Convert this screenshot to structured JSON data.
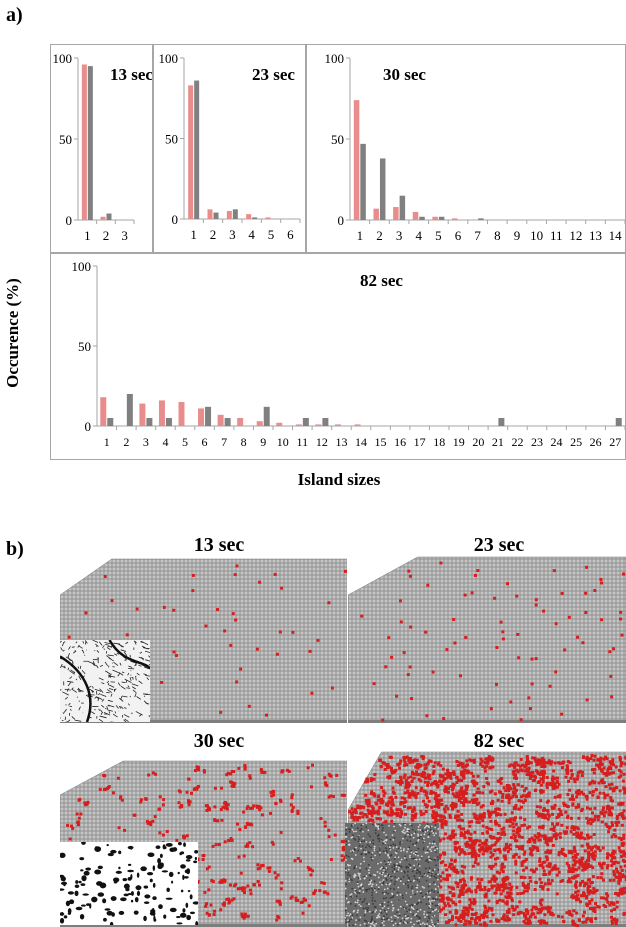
{
  "figure": {
    "panel_a_label": "a)",
    "panel_b_label": "b)",
    "ylabel": "Occurence (%)",
    "xlabel": "Island sizes"
  },
  "colors": {
    "series1": "#e98c8c",
    "series2": "#808080",
    "frame": "#a6a6a6",
    "substrate": "#a9a9a9",
    "island": "#d61e1e"
  },
  "chart_data": [
    {
      "type": "bar",
      "title": "13 sec",
      "categories": [
        "1",
        "2",
        "3"
      ],
      "ylim": [
        0,
        100
      ],
      "yticks": [
        "0",
        "50",
        "100"
      ],
      "series": [
        {
          "values": [
            96,
            2,
            0
          ]
        },
        {
          "values": [
            95,
            4,
            0
          ]
        }
      ]
    },
    {
      "type": "bar",
      "title": "23 sec",
      "categories": [
        "1",
        "2",
        "3",
        "4",
        "5",
        "6"
      ],
      "ylim": [
        0,
        100
      ],
      "yticks": [
        "0",
        "50",
        "100"
      ],
      "series": [
        {
          "values": [
            83,
            6,
            5,
            3,
            1,
            0
          ]
        },
        {
          "values": [
            86,
            4,
            6,
            1,
            0,
            0
          ]
        }
      ]
    },
    {
      "type": "bar",
      "title": "30 sec",
      "categories": [
        "1",
        "2",
        "3",
        "4",
        "5",
        "6",
        "7",
        "8",
        "9",
        "10",
        "11",
        "12",
        "13",
        "14"
      ],
      "ylim": [
        0,
        100
      ],
      "yticks": [
        "0",
        "50",
        "100"
      ],
      "series": [
        {
          "values": [
            74,
            7,
            8,
            5,
            2,
            1,
            0,
            0,
            0,
            0,
            0,
            0,
            0,
            0
          ]
        },
        {
          "values": [
            47,
            38,
            15,
            2,
            2,
            0,
            1,
            0,
            0,
            0,
            0,
            0,
            0,
            0
          ]
        }
      ]
    },
    {
      "type": "bar",
      "title": "82 sec",
      "categories": [
        "1",
        "2",
        "3",
        "4",
        "5",
        "6",
        "7",
        "8",
        "9",
        "10",
        "11",
        "12",
        "13",
        "14",
        "15",
        "16",
        "17",
        "18",
        "19",
        "20",
        "21",
        "22",
        "23",
        "24",
        "25",
        "26",
        "27"
      ],
      "ylim": [
        0,
        100
      ],
      "yticks": [
        "0",
        "50",
        "100"
      ],
      "series": [
        {
          "values": [
            18,
            0,
            14,
            16,
            15,
            11,
            7,
            5,
            3,
            2,
            1,
            1,
            1,
            1,
            0,
            0,
            0,
            0,
            0,
            0,
            0,
            0,
            0,
            0,
            0,
            0,
            0
          ]
        },
        {
          "values": [
            5,
            20,
            5,
            5,
            0,
            12,
            5,
            0,
            12,
            0,
            5,
            5,
            0,
            0,
            0,
            0,
            0,
            0,
            0,
            0,
            5,
            0,
            0,
            0,
            0,
            0,
            5
          ]
        }
      ]
    }
  ],
  "simulations": [
    {
      "title": "13 sec",
      "island_density": 0.006,
      "inset": "afm-inset-1"
    },
    {
      "title": "23 sec",
      "island_density": 0.01,
      "inset": null
    },
    {
      "title": "30 sec",
      "island_density": 0.02,
      "inset": "afm-inset-2"
    },
    {
      "title": "82 sec",
      "island_density": 0.12,
      "inset": "afm-inset-3"
    }
  ]
}
